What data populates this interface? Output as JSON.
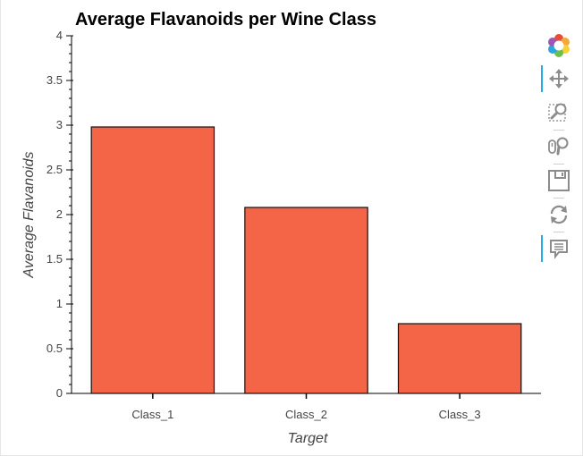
{
  "chart_data": {
    "type": "bar",
    "title": "Average Flavanoids per Wine Class",
    "xlabel": "Target",
    "ylabel": "Average Flavanoids",
    "categories": [
      "Class_1",
      "Class_2",
      "Class_3"
    ],
    "values": [
      2.98,
      2.08,
      0.78
    ],
    "ylim": [
      0,
      4
    ],
    "yticks": [
      "0",
      "0.5",
      "1",
      "1.5",
      "2",
      "2.5",
      "3",
      "3.5",
      "4"
    ],
    "ytick_values": [
      0,
      0.5,
      1,
      1.5,
      2,
      2.5,
      3,
      3.5,
      4
    ],
    "grid": false,
    "colors": {
      "bar_fill": "#f46446",
      "bar_stroke": "#111111",
      "axis": "#000000"
    }
  },
  "toolbar": {
    "tools": [
      {
        "name": "bokeh-logo-icon",
        "active": false
      },
      {
        "name": "pan-tool-icon",
        "active": true
      },
      {
        "name": "box-zoom-tool-icon",
        "active": false
      },
      {
        "name": "wheel-zoom-tool-icon",
        "active": false
      },
      {
        "name": "save-tool-icon",
        "active": false
      },
      {
        "name": "reset-tool-icon",
        "active": false
      },
      {
        "name": "hover-tool-icon",
        "active": true
      }
    ],
    "accent_color": "#26aae1"
  }
}
